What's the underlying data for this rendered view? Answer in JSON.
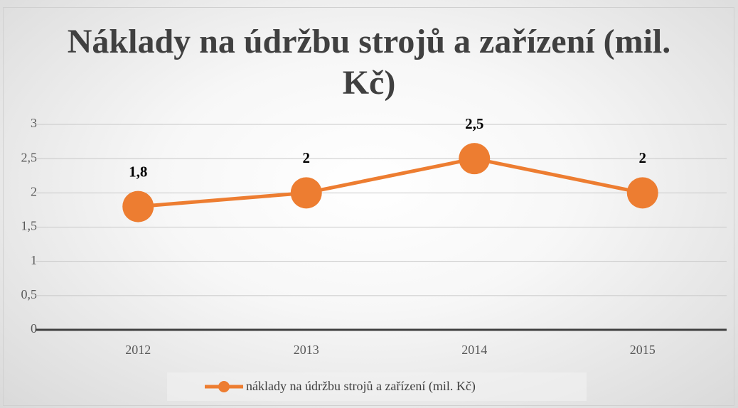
{
  "chart_data": {
    "type": "line",
    "title": "Náklady na údržbu strojů a zařízení (mil. Kč)",
    "categories": [
      "2012",
      "2013",
      "2014",
      "2015"
    ],
    "series": [
      {
        "name": "náklady na údržbu strojů a zařízení (mil. Kč)",
        "color": "#ed7d31",
        "values": [
          1.8,
          2,
          2.5,
          2
        ],
        "value_labels": [
          "1,8",
          "2",
          "2,5",
          "2"
        ]
      }
    ],
    "ylim": [
      0,
      3
    ],
    "yticks": [
      0,
      {
        "value": 0.5,
        "label": "0,5"
      },
      1,
      {
        "value": 1.5,
        "label": "1,5"
      },
      2,
      {
        "value": 2.5,
        "label": "2,5"
      },
      3
    ],
    "grid": true,
    "legend": "bottom"
  }
}
